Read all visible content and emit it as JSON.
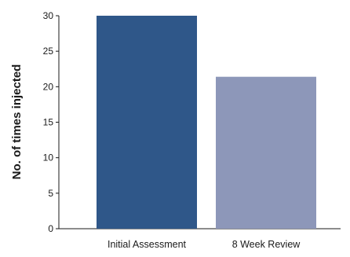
{
  "chart_data": {
    "type": "bar",
    "categories": [
      "Initial Assessment",
      "8 Week Review"
    ],
    "values": [
      30,
      21.4
    ],
    "colors": [
      "#2f5789",
      "#8d97b9"
    ],
    "xlabel": "",
    "ylabel": "No. of times injected",
    "ylim": [
      0,
      30
    ],
    "yticks": [
      "0",
      "5",
      "10",
      "15",
      "20",
      "25",
      "30"
    ],
    "grid": false,
    "legend": "none"
  }
}
